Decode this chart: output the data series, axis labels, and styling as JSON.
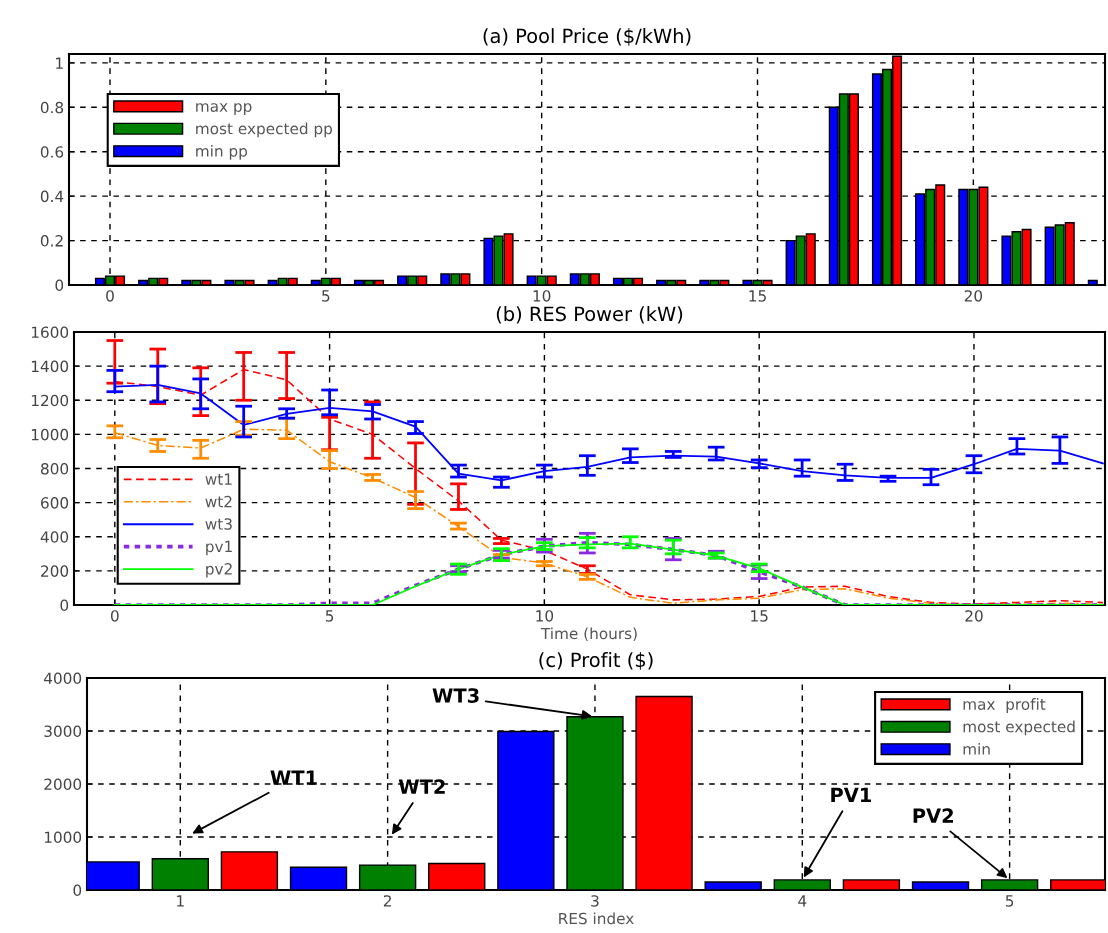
{
  "chart_data": [
    {
      "type": "bar",
      "title": "(a) Pool Price ($/kWh)",
      "x": [
        0,
        1,
        2,
        3,
        4,
        5,
        6,
        7,
        8,
        9,
        10,
        11,
        12,
        13,
        14,
        15,
        16,
        17,
        18,
        19,
        20,
        21,
        22,
        23
      ],
      "xlim": [
        -0.95,
        23.05
      ],
      "xticks": [
        0,
        5,
        10,
        15,
        20
      ],
      "ylim": [
        0,
        1.04
      ],
      "yticks": [
        0,
        0.2,
        0.4,
        0.6,
        0.8,
        1
      ],
      "grid": true,
      "legend": "top left",
      "series": [
        {
          "name": "min pp",
          "color": "#0000ff",
          "values": [
            0.03,
            0.02,
            0.02,
            0.02,
            0.02,
            0.02,
            0.02,
            0.04,
            0.05,
            0.21,
            0.04,
            0.05,
            0.03,
            0.02,
            0.02,
            0.02,
            0.2,
            0.8,
            0.95,
            0.41,
            0.43,
            0.22,
            0.26,
            0.02
          ]
        },
        {
          "name": "most expected pp",
          "color": "#008000",
          "values": [
            0.04,
            0.03,
            0.02,
            0.02,
            0.03,
            0.03,
            0.02,
            0.04,
            0.05,
            0.22,
            0.04,
            0.05,
            0.03,
            0.02,
            0.02,
            0.02,
            0.22,
            0.86,
            0.97,
            0.43,
            0.43,
            0.24,
            0.27,
            null
          ]
        },
        {
          "name": "max pp",
          "color": "#ff0000",
          "values": [
            0.04,
            0.03,
            0.02,
            0.02,
            0.03,
            0.03,
            0.02,
            0.04,
            0.05,
            0.23,
            0.04,
            0.05,
            0.03,
            0.02,
            0.02,
            0.02,
            0.23,
            0.86,
            1.03,
            0.45,
            0.44,
            0.25,
            0.28,
            null
          ]
        }
      ]
    },
    {
      "type": "line",
      "title": "(b) RES Power (kW)",
      "xlabel": "Time (hours)",
      "x": [
        0,
        1,
        2,
        3,
        4,
        5,
        6,
        7,
        8,
        9,
        10,
        11,
        12,
        13,
        14,
        15,
        16,
        17,
        18,
        19,
        20,
        21,
        22,
        23
      ],
      "xlim": [
        -0.95,
        23.05
      ],
      "xticks": [
        0,
        5,
        10,
        15,
        20
      ],
      "ylim": [
        0,
        1600
      ],
      "yticks": [
        0,
        200,
        400,
        600,
        800,
        1000,
        1200,
        1400,
        1600
      ],
      "grid": true,
      "legend": "bottom left",
      "series": [
        {
          "name": "wt1",
          "color": "#ff0000",
          "line_style": "dashed",
          "values": [
            1310,
            1280,
            1230,
            1380,
            1320,
            1090,
            1000,
            800,
            610,
            380,
            320,
            210,
            60,
            30,
            35,
            50,
            105,
            110,
            50,
            15,
            5,
            15,
            25,
            15
          ],
          "errors": [
            [
              1300,
              1550
            ],
            [
              1180,
              1500
            ],
            [
              1110,
              1390
            ],
            [
              1200,
              1480
            ],
            [
              1210,
              1480
            ],
            [
              910,
              1100
            ],
            [
              860,
              1190
            ],
            [
              590,
              950
            ],
            [
              560,
              710
            ],
            [
              360,
              390
            ],
            null,
            [
              185,
              230
            ],
            null,
            null,
            null,
            null,
            null,
            null,
            null,
            null,
            null,
            null,
            null,
            null
          ]
        },
        {
          "name": "wt2",
          "color": "#ff8c00",
          "line_style": "dashdot",
          "values": [
            1010,
            935,
            920,
            1030,
            1025,
            840,
            745,
            630,
            460,
            280,
            245,
            165,
            45,
            10,
            30,
            40,
            90,
            95,
            40,
            10,
            0,
            5,
            10,
            5
          ],
          "errors": [
            [
              980,
              1050
            ],
            [
              900,
              970
            ],
            [
              860,
              965
            ],
            [
              995,
              1075
            ],
            [
              975,
              1095
            ],
            [
              800,
              905
            ],
            [
              730,
              765
            ],
            [
              565,
              665
            ],
            [
              445,
              480
            ],
            [
              260,
              295
            ],
            [
              230,
              255
            ],
            [
              150,
              180
            ],
            null,
            null,
            null,
            null,
            null,
            null,
            null,
            null,
            null,
            null,
            null,
            null
          ]
        },
        {
          "name": "wt3",
          "color": "#0000ff",
          "line_style": "solid",
          "values": [
            1280,
            1290,
            1240,
            1055,
            1120,
            1155,
            1135,
            1045,
            770,
            730,
            785,
            810,
            865,
            875,
            870,
            830,
            785,
            760,
            745,
            745,
            825,
            915,
            905,
            830
          ],
          "errors": [
            [
              1250,
              1375
            ],
            [
              1190,
              1400
            ],
            [
              1150,
              1325
            ],
            [
              985,
              1165
            ],
            [
              1095,
              1150
            ],
            [
              1115,
              1260
            ],
            [
              1090,
              1175
            ],
            [
              1005,
              1075
            ],
            [
              750,
              820
            ],
            [
              690,
              750
            ],
            [
              750,
              820
            ],
            [
              760,
              875
            ],
            [
              835,
              915
            ],
            [
              865,
              900
            ],
            [
              850,
              925
            ],
            [
              805,
              850
            ],
            [
              755,
              850
            ],
            [
              730,
              825
            ],
            [
              725,
              755
            ],
            [
              705,
              795
            ],
            [
              775,
              875
            ],
            [
              885,
              975
            ],
            [
              830,
              985
            ],
            null
          ]
        },
        {
          "name": "pv1",
          "color": "#8a2be2",
          "line_style": "dotted",
          "values": [
            0,
            0,
            0,
            0,
            0,
            10,
            10,
            115,
            210,
            295,
            345,
            365,
            355,
            325,
            290,
            195,
            105,
            0,
            0,
            0,
            0,
            0,
            0,
            0
          ],
          "errors": [
            null,
            null,
            null,
            null,
            null,
            null,
            null,
            null,
            [
              195,
              230
            ],
            [
              275,
              320
            ],
            [
              310,
              385
            ],
            [
              305,
              420
            ],
            null,
            [
              265,
              390
            ],
            [
              275,
              315
            ],
            [
              155,
              235
            ],
            null,
            null,
            null,
            null,
            null,
            null,
            null,
            null
          ]
        },
        {
          "name": "pv2",
          "color": "#00ff00",
          "line_style": "solid",
          "values": [
            0,
            0,
            0,
            0,
            0,
            0,
            0,
            110,
            210,
            295,
            345,
            355,
            360,
            325,
            290,
            215,
            105,
            0,
            0,
            0,
            0,
            0,
            0,
            0
          ],
          "errors": [
            null,
            null,
            null,
            null,
            null,
            null,
            null,
            null,
            [
              180,
              240
            ],
            [
              260,
              330
            ],
            [
              325,
              365
            ],
            [
              335,
              395
            ],
            [
              335,
              400
            ],
            [
              300,
              380
            ],
            [
              275,
              305
            ],
            [
              195,
              240
            ],
            null,
            null,
            null,
            null,
            null,
            null,
            null,
            null
          ]
        }
      ]
    },
    {
      "type": "bar",
      "title": "(c) Profit ($)",
      "xlabel": "RES index",
      "categories": [
        "1",
        "2",
        "3",
        "4",
        "5"
      ],
      "ylim": [
        0,
        4000
      ],
      "yticks": [
        0,
        1000,
        2000,
        3000,
        4000
      ],
      "grid": true,
      "legend": "top right",
      "series": [
        {
          "name": "min",
          "color": "#0000ff",
          "values": [
            530,
            430,
            2990,
            150,
            150
          ]
        },
        {
          "name": "most expected",
          "color": "#008000",
          "values": [
            590,
            470,
            3270,
            190,
            190
          ]
        },
        {
          "name": "max  profit",
          "color": "#ff0000",
          "values": [
            720,
            500,
            3650,
            190,
            190
          ]
        }
      ],
      "annotations": [
        "WT1",
        "WT2",
        {
          "text": "WT3",
          "x": "3",
          "y": 3270
        },
        {
          "text": "PV1",
          "x": "4",
          "y": 190
        },
        {
          "text": "PV2",
          "x": "5",
          "y": 190
        }
      ]
    }
  ]
}
